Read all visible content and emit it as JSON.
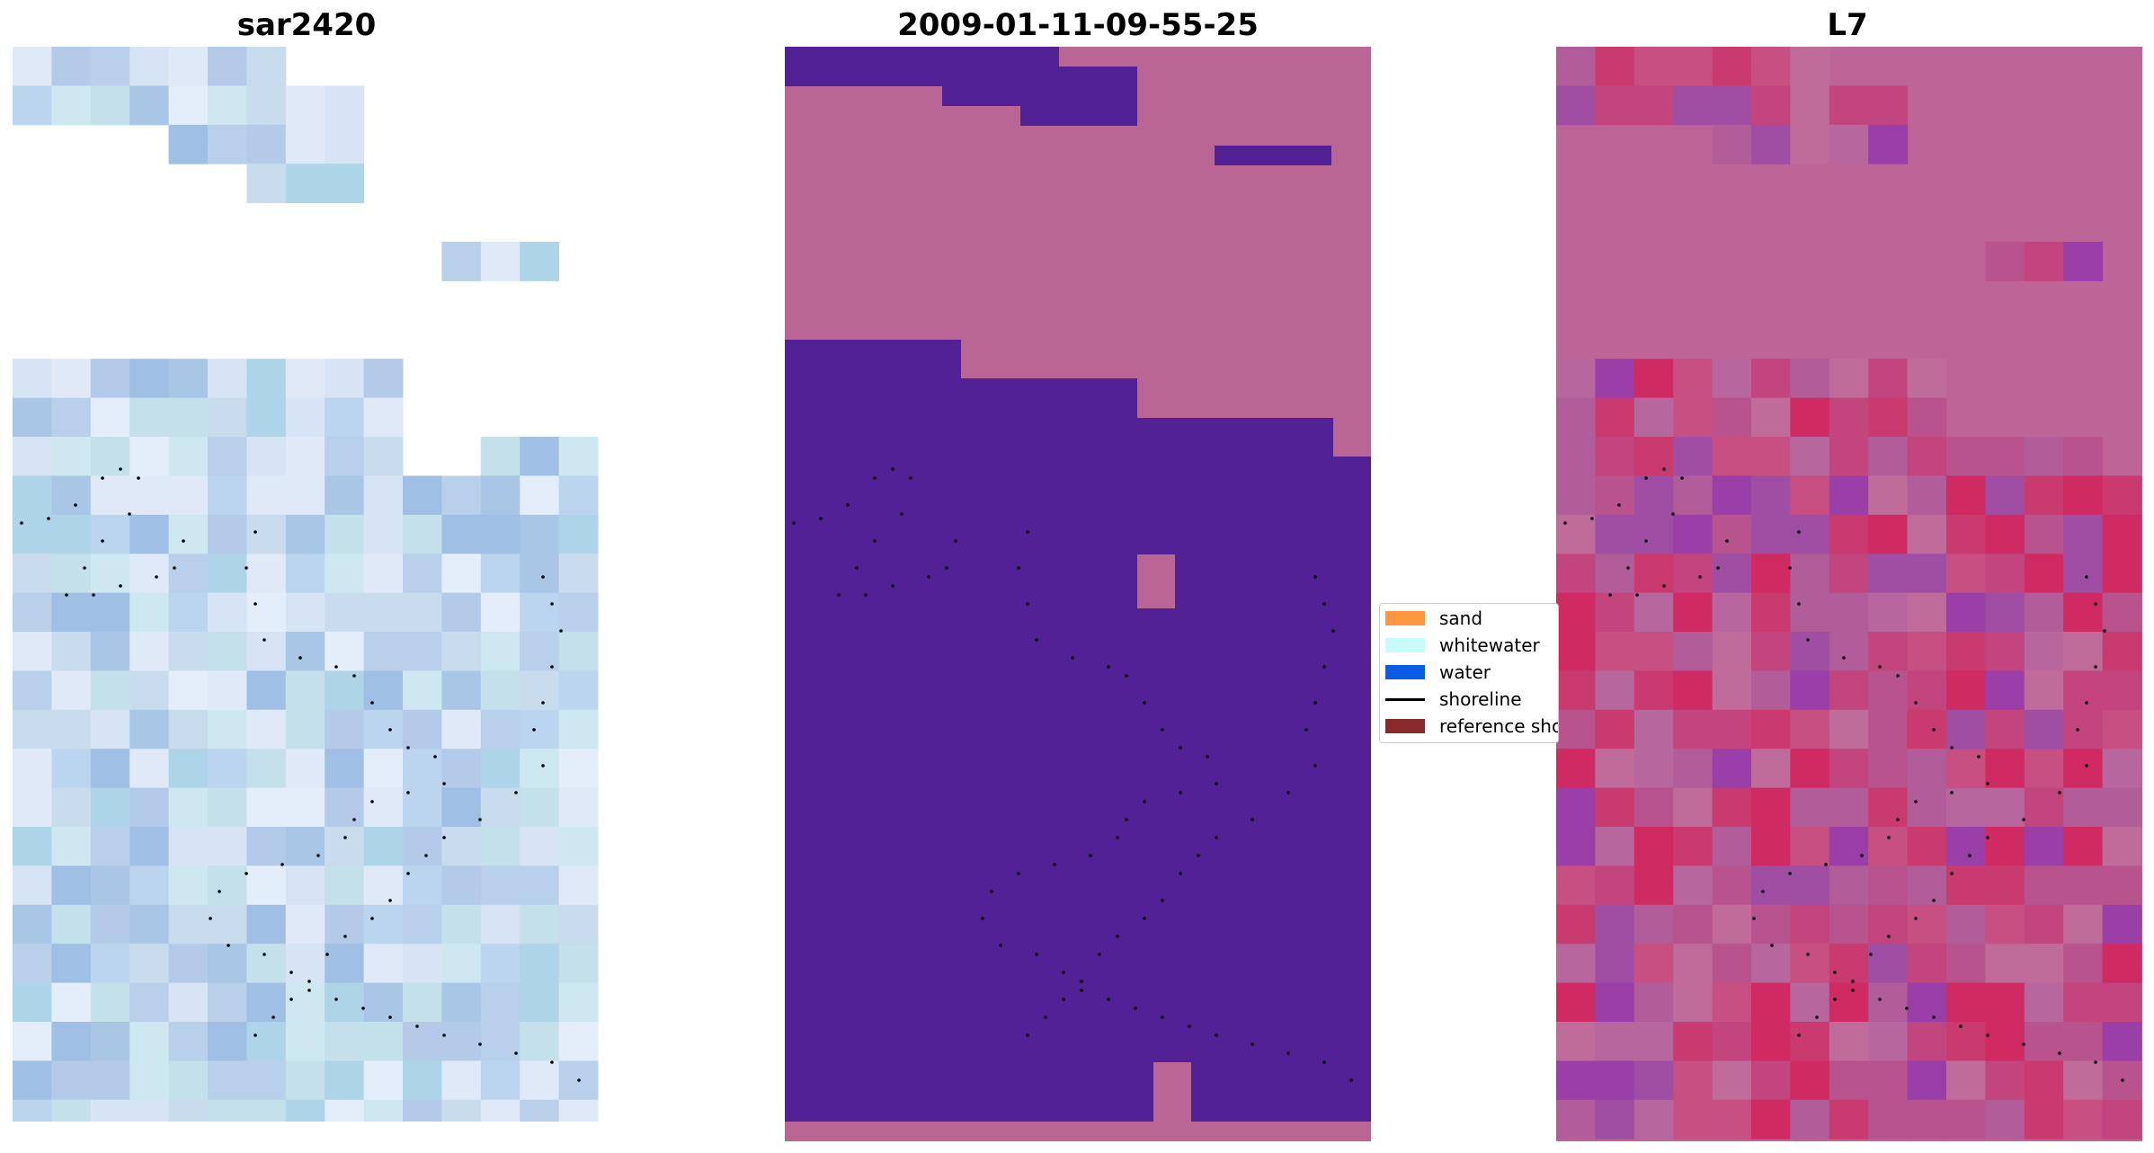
{
  "panels": [
    {
      "title": "sar2420"
    },
    {
      "title": "2009-01-11-09-55-25"
    },
    {
      "title": "L7"
    }
  ],
  "legend": {
    "items": [
      {
        "label": "sand",
        "kind": "patch",
        "color": "#ff9640"
      },
      {
        "label": "whitewater",
        "kind": "patch",
        "color": "#c8fcfa"
      },
      {
        "label": "water",
        "kind": "patch",
        "color": "#0a5ce6"
      },
      {
        "label": "shoreline",
        "kind": "line",
        "color": "#000000"
      },
      {
        "label": "reference shoreline",
        "kind": "patch",
        "color": "#8b2a2a"
      }
    ]
  },
  "colors": {
    "water_class": "#532196",
    "masked_cloud": "#b96694",
    "l7_water": "#7b1fa2",
    "l7_land": "#c2185b",
    "shoreline_points": "#000000"
  }
}
